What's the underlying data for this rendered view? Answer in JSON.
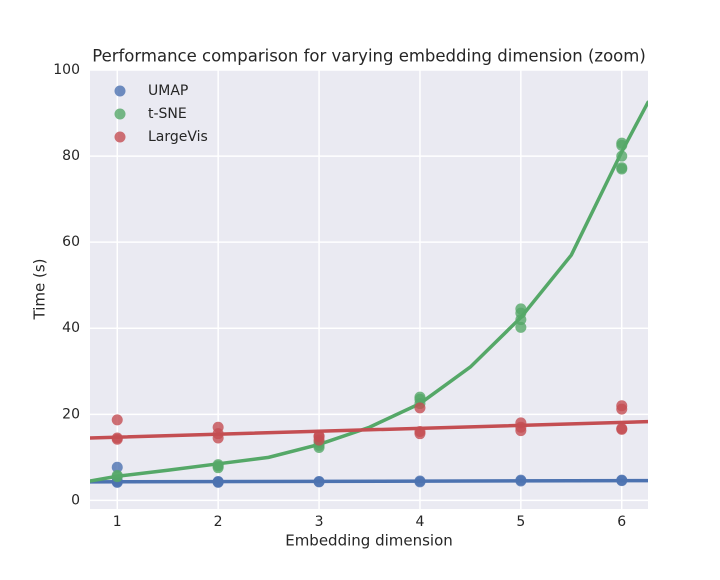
{
  "chart_data": {
    "type": "scatter",
    "title": "Performance comparison for varying embedding dimension (zoom)",
    "x_label": "Embedding dimension",
    "y_label": "Time (s)",
    "xlim": [
      0.73,
      6.26
    ],
    "ylim": [
      -2,
      100
    ],
    "xticks": [
      1,
      2,
      3,
      4,
      5,
      6
    ],
    "yticks": [
      0,
      20,
      40,
      60,
      80,
      100
    ],
    "grid": true,
    "legend": "upper left",
    "series": [
      {
        "name": "UMAP",
        "color": "#4c72b0",
        "x": [
          1,
          1,
          1,
          1,
          2,
          2,
          2,
          3,
          3,
          4,
          4,
          5,
          5,
          6,
          6
        ],
        "values": [
          7.7,
          4.3,
          4.2,
          4.5,
          4.3,
          4.4,
          4.2,
          4.4,
          4.3,
          4.5,
          4.3,
          4.7,
          4.5,
          4.6,
          4.7
        ],
        "fit": {
          "x": [
            0.73,
            6.26
          ],
          "values": [
            4.3,
            4.6
          ]
        }
      },
      {
        "name": "t-SNE",
        "color": "#55a868",
        "x": [
          1,
          1,
          2,
          2,
          2,
          3,
          3,
          3,
          4,
          4,
          4,
          5,
          5,
          5,
          5,
          6,
          6,
          6,
          6,
          6
        ],
        "values": [
          5.5,
          5.8,
          8.0,
          7.6,
          8.3,
          12.3,
          12.8,
          13.5,
          24.0,
          22.5,
          23.5,
          44.5,
          43.5,
          42,
          40.2,
          83,
          82.5,
          80,
          77.3,
          77
        ],
        "fit": {
          "x": [
            0.73,
            1,
            1.5,
            2,
            2.5,
            3,
            3.5,
            4,
            4.5,
            5,
            5.5,
            6,
            6.26
          ],
          "values": [
            4.5,
            5.6,
            7,
            8.5,
            10,
            13,
            17,
            22.5,
            31,
            42.5,
            57,
            81,
            92.5
          ]
        }
      },
      {
        "name": "LargeVis",
        "color": "#c44e52",
        "x": [
          1,
          1,
          1,
          2,
          2,
          2,
          3,
          3,
          3,
          4,
          4,
          4,
          5,
          5,
          5,
          6,
          6,
          6,
          6
        ],
        "values": [
          18.7,
          14.5,
          14.2,
          17,
          15.5,
          14.5,
          15,
          14,
          14.8,
          21.5,
          16,
          15.5,
          18,
          17,
          16.2,
          22,
          21.2,
          16.7,
          16.5
        ],
        "fit": {
          "x": [
            0.73,
            6.26
          ],
          "values": [
            14.5,
            18.3
          ]
        }
      }
    ]
  }
}
